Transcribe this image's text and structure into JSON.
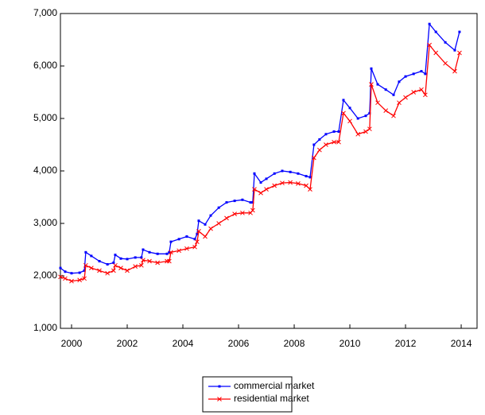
{
  "chart_data": {
    "type": "line",
    "x": [
      1999.6,
      1999.77,
      2000,
      2000.29,
      2000.46,
      2000.51,
      2000.71,
      2001,
      2001.29,
      2001.51,
      2001.57,
      2001.77,
      2002,
      2002.29,
      2002.51,
      2002.57,
      2002.8,
      2003.09,
      2003.43,
      2003.51,
      2003.57,
      2003.86,
      2004.14,
      2004.43,
      2004.51,
      2004.57,
      2004.8,
      2005,
      2005.29,
      2005.57,
      2005.86,
      2006.14,
      2006.43,
      2006.51,
      2006.57,
      2006.8,
      2007,
      2007.29,
      2007.57,
      2007.86,
      2008.14,
      2008.43,
      2008.57,
      2008.71,
      2008.91,
      2009.14,
      2009.43,
      2009.6,
      2009.77,
      2010,
      2010.29,
      2010.57,
      2010.71,
      2010.77,
      2011,
      2011.29,
      2011.57,
      2011.77,
      2012,
      2012.29,
      2012.57,
      2012.71,
      2012.86,
      2013.09,
      2013.43,
      2013.77,
      2013.94
    ],
    "series": [
      {
        "name": "commercial market",
        "color": "#0000ff",
        "marker": "dot",
        "values": [
          2150,
          2080,
          2050,
          2060,
          2100,
          2450,
          2380,
          2280,
          2220,
          2250,
          2400,
          2330,
          2320,
          2350,
          2350,
          2500,
          2450,
          2420,
          2420,
          2450,
          2650,
          2700,
          2750,
          2700,
          2800,
          3050,
          2980,
          3150,
          3300,
          3400,
          3430,
          3450,
          3400,
          3400,
          3950,
          3780,
          3850,
          3950,
          4000,
          3980,
          3950,
          3900,
          3880,
          4500,
          4600,
          4700,
          4750,
          4750,
          5350,
          5200,
          5000,
          5050,
          5100,
          5950,
          5650,
          5550,
          5450,
          5700,
          5800,
          5850,
          5900,
          5850,
          6800,
          6650,
          6450,
          6300,
          6650
        ]
      },
      {
        "name": "residential market",
        "color": "#ff0000",
        "marker": "x",
        "values": [
          1980,
          1950,
          1900,
          1920,
          1950,
          2200,
          2150,
          2100,
          2050,
          2100,
          2200,
          2150,
          2100,
          2180,
          2200,
          2300,
          2280,
          2250,
          2280,
          2280,
          2450,
          2480,
          2520,
          2550,
          2650,
          2850,
          2750,
          2900,
          3000,
          3100,
          3180,
          3200,
          3200,
          3250,
          3650,
          3580,
          3650,
          3720,
          3770,
          3780,
          3760,
          3720,
          3650,
          4250,
          4400,
          4500,
          4550,
          4550,
          5100,
          4950,
          4700,
          4750,
          4800,
          5650,
          5300,
          5150,
          5050,
          5300,
          5400,
          5500,
          5550,
          5450,
          6400,
          6250,
          6050,
          5900,
          6250
        ]
      }
    ],
    "xlim": [
      1999.6,
      2014.57
    ],
    "xticks": [
      2000,
      2002,
      2004,
      2006,
      2008,
      2010,
      2012,
      2014
    ],
    "ylim": [
      1000,
      7000
    ],
    "yticks": [
      {
        "value": 1000,
        "label": "1,000"
      },
      {
        "value": 2000,
        "label": "2,000"
      },
      {
        "value": 3000,
        "label": "3,000"
      },
      {
        "value": 4000,
        "label": "4,000"
      },
      {
        "value": 5000,
        "label": "5,000"
      },
      {
        "value": 6000,
        "label": "6,000"
      },
      {
        "value": 7000,
        "label": "7,000"
      }
    ],
    "legend": "bottom"
  }
}
